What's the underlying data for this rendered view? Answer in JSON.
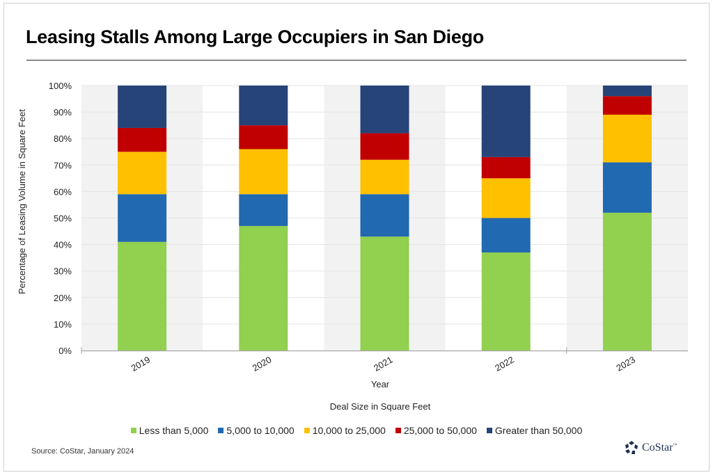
{
  "title": "Leasing Stalls Among Large Occupiers in San Diego",
  "source": "Source: CoStar, January 2024",
  "logo": {
    "text": "CoStar",
    "tm": "™",
    "icon": "costar-star-icon"
  },
  "chart_data": {
    "type": "bar",
    "stacked": true,
    "title": "Leasing Stalls Among Large Occupiers in San Diego",
    "xlabel": "Year",
    "ylabel": "Percentage of Leasing Volume  in Square Feet",
    "legend_title": "Deal Size in Square Feet",
    "legend_position": "bottom",
    "categories": [
      "2019",
      "2020",
      "2021",
      "2022",
      "2023"
    ],
    "ylim": [
      0,
      100
    ],
    "yticks": [
      "0%",
      "10%",
      "20%",
      "30%",
      "40%",
      "50%",
      "60%",
      "70%",
      "80%",
      "90%",
      "100%"
    ],
    "grid": true,
    "series": [
      {
        "name": "Less than 5,000",
        "color": "#92d050",
        "values": [
          41,
          47,
          43,
          37,
          52
        ]
      },
      {
        "name": "5,000 to 10,000",
        "color": "#2169b0",
        "values": [
          18,
          12,
          16,
          13,
          19
        ]
      },
      {
        "name": "10,000 to 25,000",
        "color": "#ffc000",
        "values": [
          16,
          17,
          13,
          15,
          18
        ]
      },
      {
        "name": "25,000 to 50,000",
        "color": "#c00000",
        "values": [
          9,
          9,
          10,
          8,
          7
        ]
      },
      {
        "name": "Greater than 50,000",
        "color": "#264478",
        "values": [
          16,
          15,
          18,
          27,
          4
        ]
      }
    ]
  }
}
